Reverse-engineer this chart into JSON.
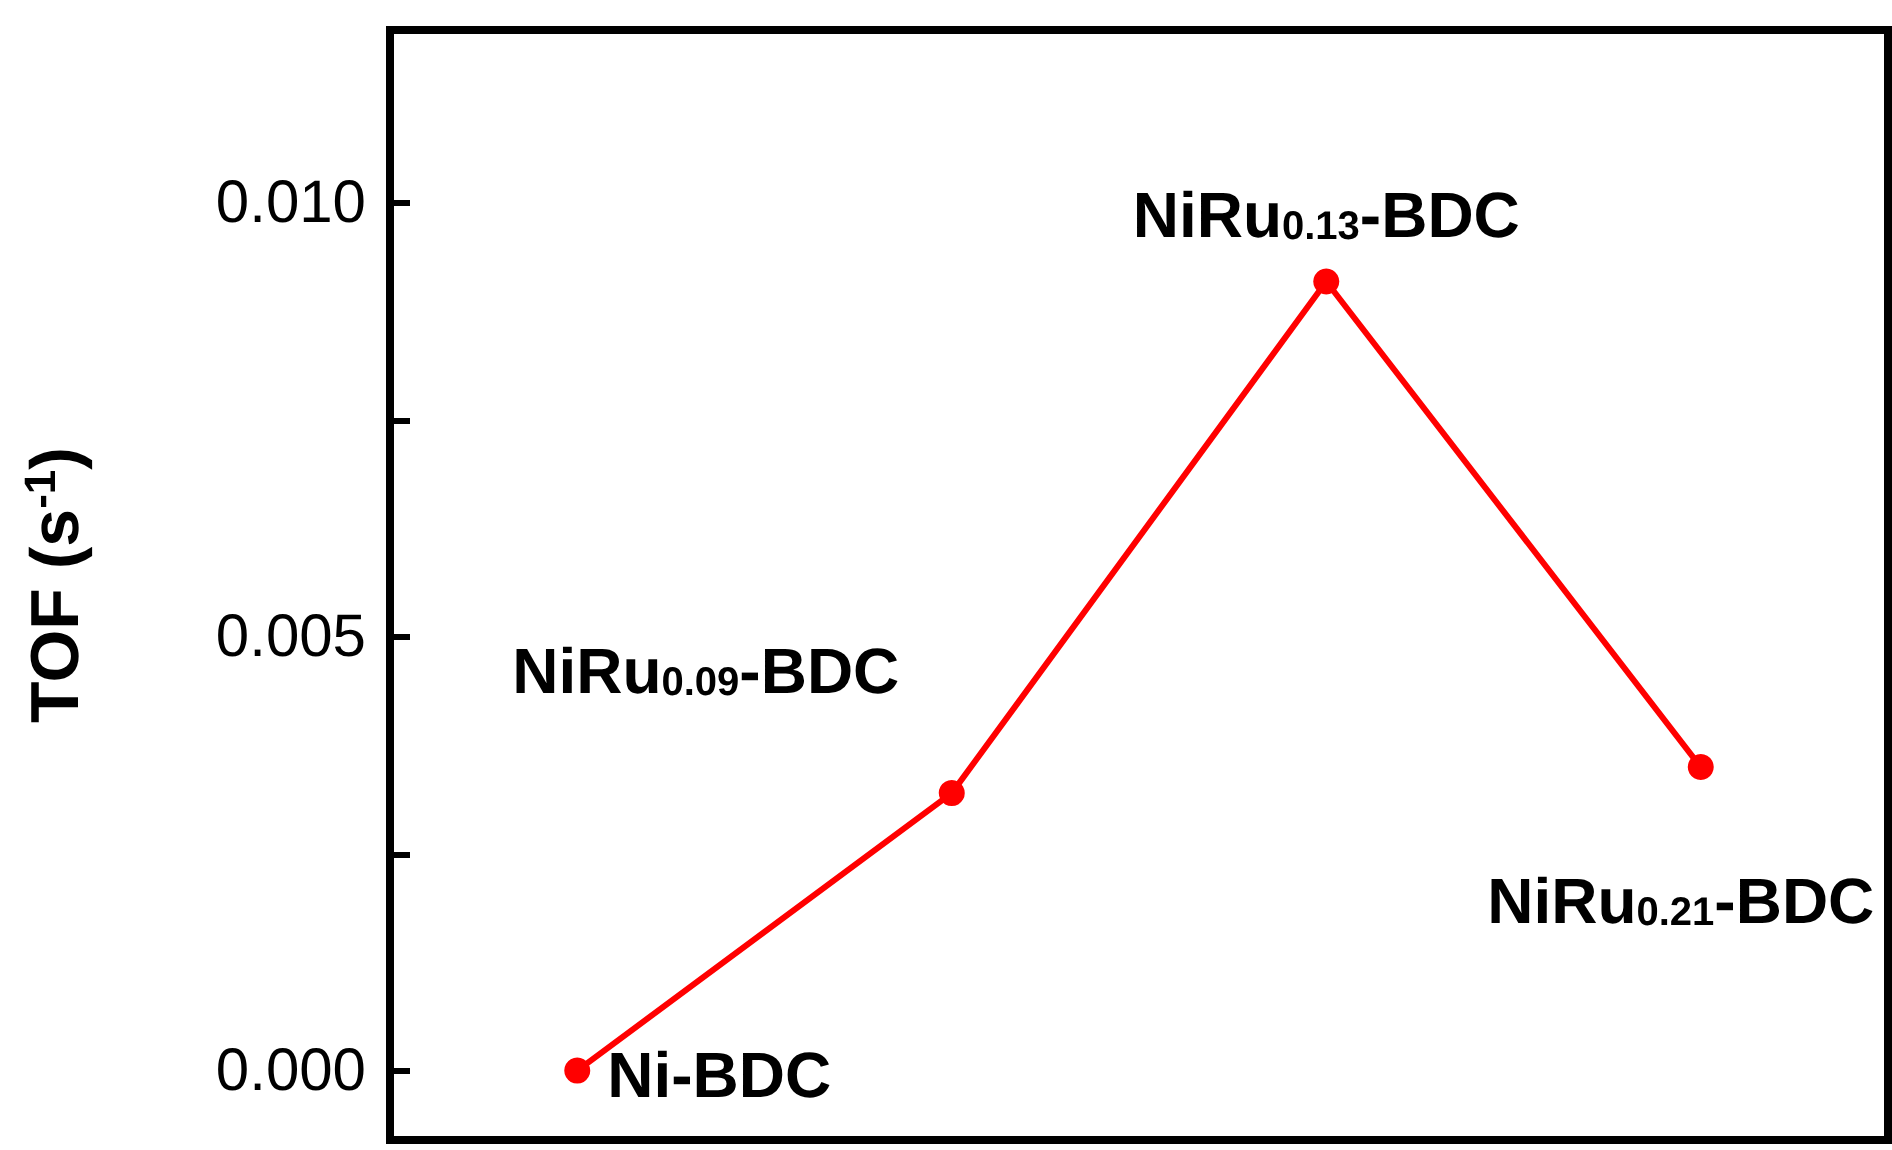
{
  "chart_data": {
    "type": "line",
    "ylabel": "TOF (s$^{-1}$)",
    "categories": [
      null,
      null,
      null,
      null
    ],
    "series": [
      {
        "color": "#ff0000",
        "values": [
          0.0,
          0.0032,
          0.0091,
          0.0035
        ]
      }
    ],
    "annotations": [
      "Ni-BDC",
      "NiRu$_{0.09}$-BDC",
      "NiRu$_{0.13}$-BDC",
      "NiRu$_{0.21}$-BDC"
    ],
    "ylim": [
      -0.0008,
      0.012
    ],
    "yticks": [
      {
        "value": 0,
        "label": "0.000"
      },
      {
        "value": 0.0025,
        "label": null
      },
      {
        "value": 0.005,
        "label": "0.005"
      },
      {
        "value": 0.0075,
        "label": null
      },
      {
        "value": 0.01,
        "label": "0.010"
      }
    ],
    "tick_labels": "y",
    "marker": "circle",
    "line_style": "solid"
  }
}
